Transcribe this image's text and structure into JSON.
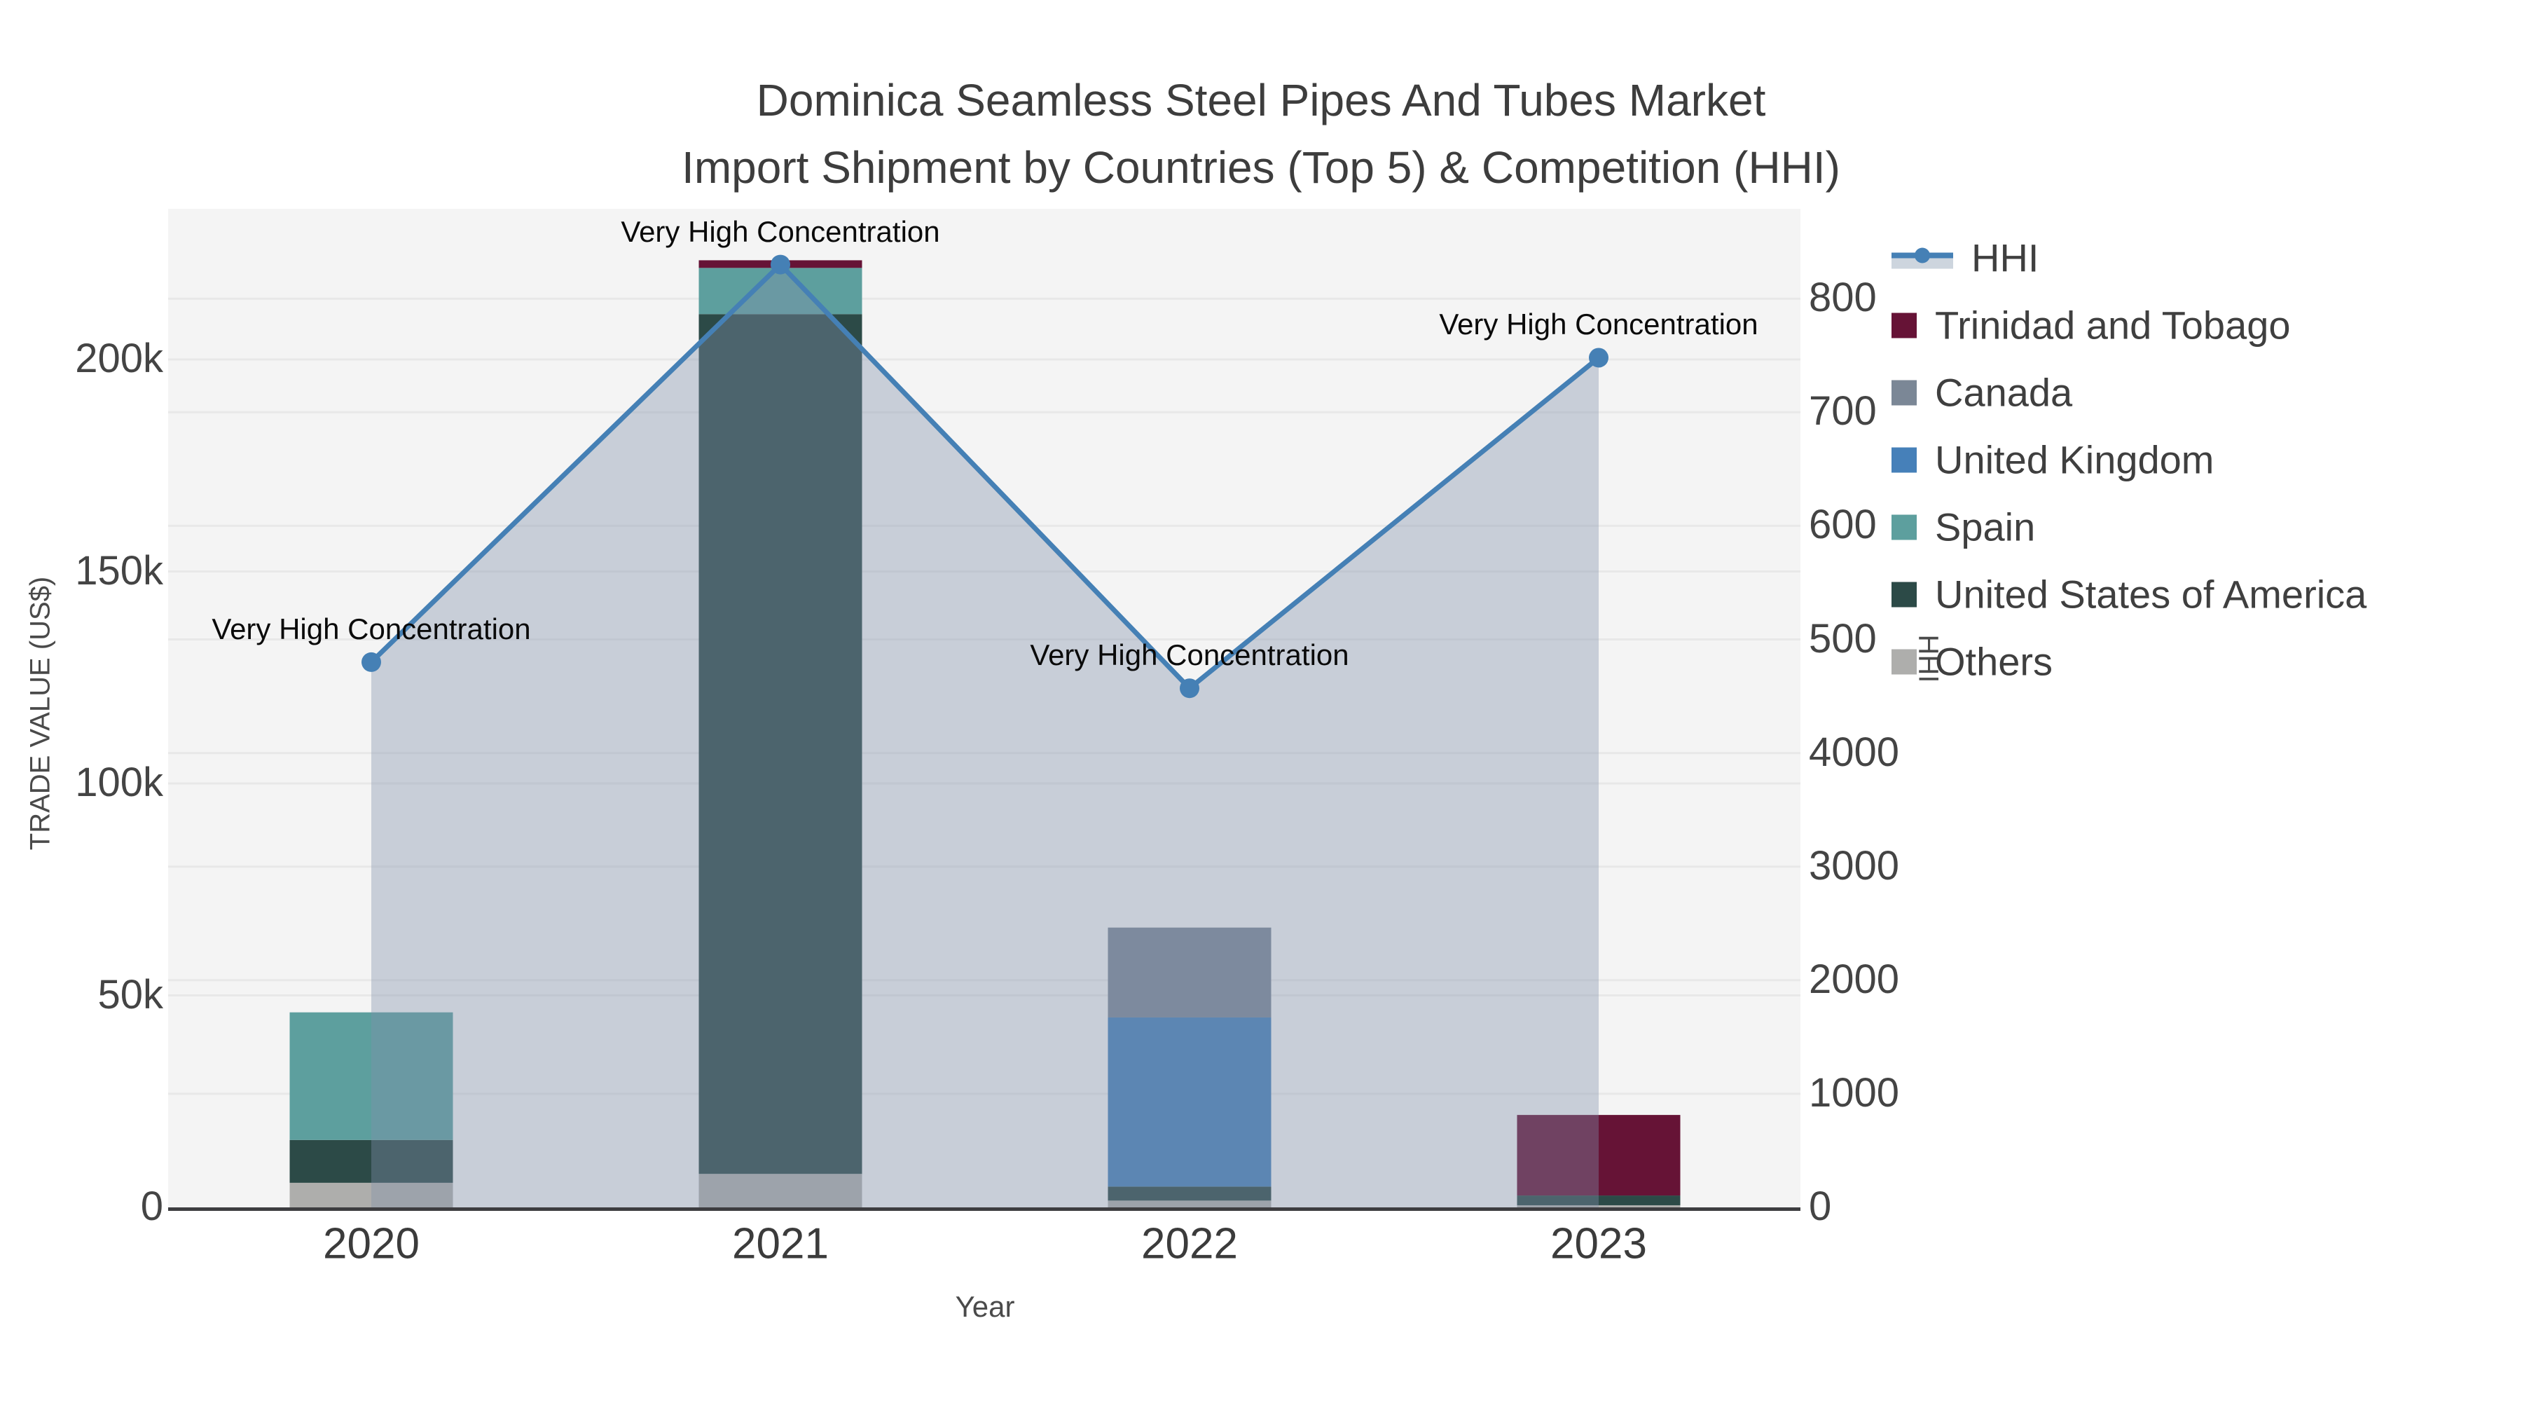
{
  "title": {
    "line1": "Dominica Seamless Steel Pipes And Tubes Market",
    "line2": "Import Shipment by Countries (Top 5) & Competition (HHI)"
  },
  "axes": {
    "x": {
      "title": "Year",
      "categories": [
        "2020",
        "2021",
        "2022",
        "2023"
      ]
    },
    "y_left": {
      "title": "TRADE VALUE (US$)",
      "tick_labels": [
        "0",
        "50k",
        "100k",
        "150k",
        "200k"
      ],
      "tick_values": [
        0,
        50000,
        100000,
        150000,
        200000
      ]
    },
    "y_right": {
      "title": "HHI",
      "tick_labels": [
        "0",
        "1000",
        "2000",
        "3000",
        "4000",
        "500",
        "600",
        "700",
        "800"
      ]
    }
  },
  "legend": {
    "items": [
      {
        "label": "HHI",
        "type": "line",
        "color": "#4580b5",
        "band_color": "#cdd5de"
      },
      {
        "label": "Trinidad and Tobago",
        "type": "swatch",
        "color": "#661336"
      },
      {
        "label": "Canada",
        "type": "swatch",
        "color": "#7b8796"
      },
      {
        "label": "United Kingdom",
        "type": "swatch",
        "color": "#4680b9"
      },
      {
        "label": "Spain",
        "type": "swatch",
        "color": "#5d9f9e"
      },
      {
        "label": "United States of America",
        "type": "swatch",
        "color": "#2c4a47"
      },
      {
        "label": "Others",
        "type": "swatch",
        "color": "#aeaeac"
      }
    ]
  },
  "annotations": [
    {
      "text": "Very High Concentration",
      "category": "2020"
    },
    {
      "text": "Very High Concentration",
      "category": "2021"
    },
    {
      "text": "Very High Concentration",
      "category": "2022"
    },
    {
      "text": "Very High Concentration",
      "category": "2023"
    }
  ],
  "chart_data": {
    "type": "bar+line",
    "title": "Dominica Seamless Steel Pipes And Tubes Market — Import Shipment by Countries (Top 5) & Competition (HHI)",
    "categories": [
      "2020",
      "2021",
      "2022",
      "2023"
    ],
    "xlabel": "Year",
    "ylabel_left": "TRADE VALUE (US$)",
    "ylabel_right": "HHI",
    "stack_order_bottom_to_top": [
      "Others",
      "United States of America",
      "Spain",
      "United Kingdom",
      "Canada",
      "Trinidad and Tobago"
    ],
    "series": [
      {
        "name": "Others",
        "color": "#aeaeac",
        "values": [
          5800,
          7900,
          1600,
          500
        ]
      },
      {
        "name": "United States of America",
        "color": "#2c4a47",
        "values": [
          10100,
          202800,
          3300,
          2300
        ]
      },
      {
        "name": "Spain",
        "color": "#5d9f9e",
        "values": [
          30100,
          10900,
          0,
          0
        ]
      },
      {
        "name": "United Kingdom",
        "color": "#4680b9",
        "values": [
          0,
          0,
          39900,
          0
        ]
      },
      {
        "name": "Canada",
        "color": "#7b8796",
        "values": [
          0,
          0,
          21200,
          0
        ]
      },
      {
        "name": "Trinidad and Tobago",
        "color": "#661336",
        "values": [
          0,
          1800,
          0,
          19000
        ]
      }
    ],
    "bar_totals": [
      46000,
      223400,
      66000,
      21800
    ],
    "line_series": {
      "name": "HHI",
      "axis": "right",
      "color": "#4580b5",
      "fill_color": "rgba(128,144,170,0.38)",
      "values": [
        4800,
        8300,
        4570,
        7480
      ]
    },
    "y_left_range": [
      0,
      236000
    ],
    "y_right_displayed_ticks": [
      "0",
      "1000",
      "2000",
      "3000",
      "4000",
      "500",
      "600",
      "700",
      "800"
    ],
    "grid": "on",
    "legend_position": "right",
    "colors": {
      "plot_background": "#f4f4f4",
      "gridline": "#e8e8e8",
      "axis_line": "#3d3d40",
      "tick_text": "#444444",
      "title_text": "#3d3d3d",
      "annotation_text": "#0a0a0a"
    }
  }
}
